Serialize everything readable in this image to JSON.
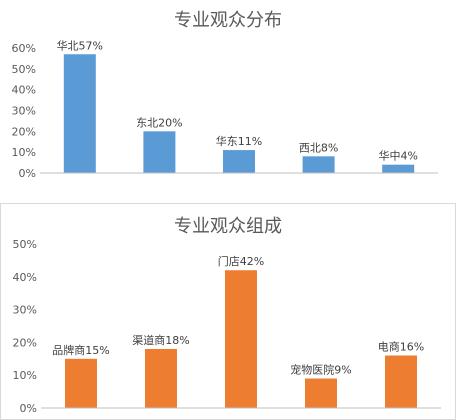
{
  "chart_data": [
    {
      "type": "bar",
      "title": "专业观众分布",
      "categories": [
        "华北",
        "东北",
        "华东",
        "西北",
        "华中"
      ],
      "values": [
        57,
        20,
        11,
        8,
        4
      ],
      "data_labels": [
        "华北57%",
        "东北20%",
        "华东11%",
        "西北8%",
        "华中4%"
      ],
      "yticks": [
        "0%",
        "10%",
        "20%",
        "30%",
        "40%",
        "50%",
        "60%"
      ],
      "ylim": [
        0,
        60
      ],
      "grid": false,
      "color": "#5B9BD5",
      "xlabel": "",
      "ylabel": ""
    },
    {
      "type": "bar",
      "title": "专业观众组成",
      "categories": [
        "品牌商",
        "渠道商",
        "门店",
        "宠物医院",
        "电商"
      ],
      "values": [
        15,
        18,
        42,
        9,
        16
      ],
      "data_labels": [
        "品牌商15%",
        "渠道商18%",
        "门店42%",
        "宠物医院9%",
        "电商16%"
      ],
      "yticks": [
        "0%",
        "10%",
        "20%",
        "30%",
        "40%",
        "50%"
      ],
      "ylim": [
        0,
        50
      ],
      "grid": false,
      "color": "#ED7D31",
      "xlabel": "",
      "ylabel": ""
    }
  ]
}
